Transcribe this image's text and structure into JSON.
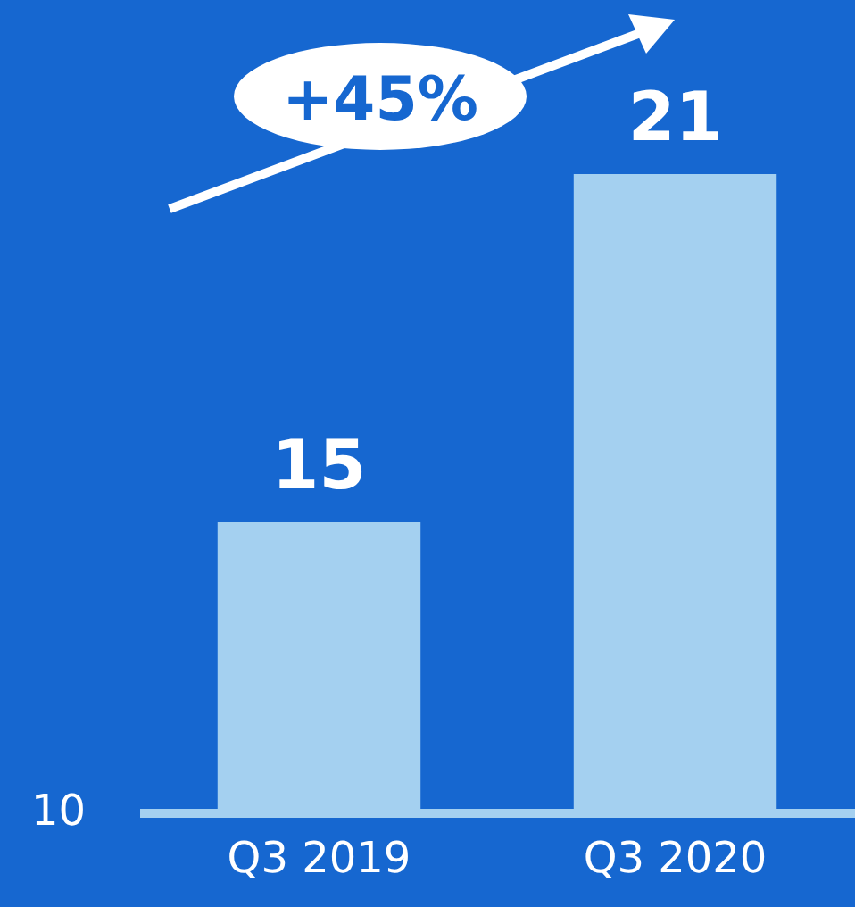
{
  "chart_data": {
    "type": "bar",
    "categories": [
      "Q3 2019",
      "Q3 2020"
    ],
    "values": [
      15,
      21
    ],
    "color": "#a4d0f0",
    "ylim": [
      10,
      24
    ],
    "data_labels": true,
    "annotations": [
      "+45%",
      "10"
    ]
  }
}
